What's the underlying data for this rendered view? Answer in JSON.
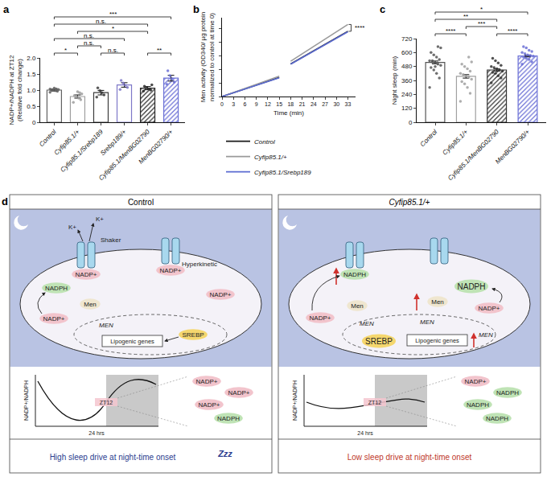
{
  "chart_data": [
    {
      "label": "a",
      "type": "bar",
      "categories": [
        "Control",
        "Cyfip85.1/+",
        "Cyfip85.1/Srebp189",
        "Srebp189/+",
        "Cyfip85.1/MenBG02790",
        "MenBG02790/+"
      ],
      "values": [
        1.0,
        0.8,
        0.92,
        1.16,
        1.06,
        1.37
      ],
      "errors": [
        0.03,
        0.05,
        0.07,
        0.07,
        0.05,
        0.09
      ],
      "points": [
        [
          0.93,
          0.96,
          0.98,
          1.0,
          1.01,
          1.02,
          1.04,
          1.06,
          0.99,
          1.03
        ],
        [
          0.62,
          0.7,
          0.75,
          0.8,
          0.83,
          0.88,
          0.92,
          0.95
        ],
        [
          0.78,
          0.85,
          0.92,
          0.98,
          1.07
        ],
        [
          1.02,
          1.08,
          1.15,
          1.22,
          1.3
        ],
        [
          0.97,
          1.0,
          1.04,
          1.08,
          1.12,
          1.16
        ],
        [
          1.18,
          1.25,
          1.35,
          1.45,
          1.6
        ]
      ],
      "colors": [
        "#616161",
        "#9e9e9e",
        "#3c3c3c",
        "#7e78c8",
        "#2a2a2a",
        "#6b70d6"
      ],
      "y_label": [
        "NADP+/NADPH at ZT12",
        "(Relative fold change)"
      ],
      "ylim": [
        0,
        2
      ],
      "yticks": [
        0,
        0.5,
        {
          "value": 1,
          "label": "1.0"
        },
        1.5,
        {
          "value": 2,
          "label": "2.0"
        }
      ],
      "brackets": [
        {
          "from": "Control",
          "to": "Cyfip85.1/+",
          "label": "*"
        },
        {
          "from": "Cyfip85.1/+",
          "to": "Cyfip85.1/Srebp189",
          "label": "n.s."
        },
        {
          "from": "Cyfip85.1/Srebp189",
          "to": "Srebp189/+",
          "label": "n.s."
        },
        {
          "from": "Cyfip85.1/MenBG02790",
          "to": "MenBG02790/+",
          "label": "**"
        },
        {
          "from": "Control",
          "to": "Srebp189/+",
          "label": "n.s."
        },
        {
          "from": "Cyfip85.1/+",
          "to": "Cyfip85.1/MenBG02790",
          "label": "*"
        },
        {
          "from": "Control",
          "to": "Cyfip85.1/MenBG02790",
          "label": "n.s."
        },
        {
          "from": "Control",
          "to": "MenBG02790/+",
          "label": "***"
        }
      ]
    },
    {
      "label": "b",
      "type": "line",
      "x": [
        0,
        1.5,
        3,
        4.5,
        6,
        7.5,
        9,
        10.5,
        12,
        13.5,
        15,
        16.5,
        18,
        19.5,
        21,
        22.5,
        24,
        25.5,
        27,
        28.5,
        30,
        31.5,
        33
      ],
      "series": [
        {
          "name": "Control",
          "color": "#1a1a1a",
          "values": [
            0,
            0.14,
            0.28,
            0.42,
            0.56,
            0.7,
            0.84,
            0.98,
            1.12,
            1.26,
            1.4,
            null,
            2.4,
            2.64,
            2.88,
            3.12,
            3.36,
            3.6,
            3.84,
            4.08,
            4.32,
            4.56,
            4.8
          ]
        },
        {
          "name": "Cyfip85.1/+",
          "color": "#9a9a9a",
          "values": [
            0,
            0.15,
            0.3,
            0.45,
            0.6,
            0.75,
            0.9,
            1.05,
            1.2,
            1.35,
            1.5,
            null,
            2.6,
            2.87,
            3.14,
            3.41,
            3.68,
            3.95,
            4.22,
            4.49,
            4.76,
            5.03,
            5.3
          ]
        },
        {
          "name": "Cyfip85.1/Srebp189",
          "color": "#5b6bd1",
          "values": [
            0,
            0.14,
            0.28,
            0.41,
            0.55,
            0.69,
            0.83,
            0.97,
            1.1,
            1.24,
            1.38,
            null,
            2.38,
            2.62,
            2.86,
            3.1,
            3.33,
            3.57,
            3.81,
            4.05,
            4.29,
            4.53,
            4.76
          ]
        }
      ],
      "x_label": "Time (min)",
      "y_label": [
        "Men activity (OD340/ µg protein",
        "normalized to control at time 0)"
      ],
      "xlim": [
        0,
        35
      ],
      "xticks": [
        0,
        3,
        6,
        9,
        12,
        15,
        18,
        21,
        24,
        27,
        30,
        33
      ],
      "ylim": [
        0,
        5.8
      ],
      "yticks": [
        0,
        1,
        2,
        3,
        4,
        5
      ],
      "tick_labels": "x",
      "legend": "bottom",
      "annotations": [
        {
          "text": "****",
          "x": 33,
          "from": 4.8,
          "to": 5.3
        }
      ]
    },
    {
      "label": "c",
      "type": "bar",
      "categories": [
        "Control",
        "Cyfip85.1/+",
        "Cyfip85.1/MenBG02790",
        "MenBG02790/+"
      ],
      "values": [
        515,
        395,
        450,
        570
      ],
      "errors": [
        12,
        15,
        9,
        7
      ],
      "points": [
        [
          300,
          380,
          420,
          450,
          470,
          490,
          500,
          510,
          520,
          530,
          540,
          560,
          580,
          600,
          640,
          650,
          480,
          530
        ],
        [
          180,
          250,
          300,
          330,
          350,
          370,
          390,
          400,
          410,
          420,
          440,
          460,
          480,
          500,
          520,
          560
        ],
        [
          340,
          380,
          400,
          420,
          430,
          440,
          450,
          460,
          470,
          480,
          490,
          510,
          530,
          550
        ],
        [
          500,
          520,
          540,
          550,
          560,
          570,
          575,
          580,
          590,
          600,
          610,
          620,
          640,
          650
        ]
      ],
      "colors": [
        "#555555",
        "#a0a0a0",
        "#333333",
        "#6b70d6"
      ],
      "y_label": [
        "Night sleep (min)"
      ],
      "ylim": [
        0,
        720
      ],
      "yticks": [
        0,
        120,
        240,
        360,
        480,
        600,
        720
      ],
      "brackets": [
        {
          "from": "Control",
          "to": "Cyfip85.1/+",
          "label": "****"
        },
        {
          "from": "Cyfip85.1/+",
          "to": "Cyfip85.1/MenBG02790",
          "label": "***"
        },
        {
          "from": "Cyfip85.1/MenBG02790",
          "to": "MenBG02790/+",
          "label": "****"
        },
        {
          "from": "Control",
          "to": "Cyfip85.1/MenBG02790",
          "label": "**"
        },
        {
          "from": "Control",
          "to": "MenBG02790/+",
          "label": "*"
        }
      ]
    }
  ],
  "diagram": {
    "label": "d",
    "panels": [
      {
        "title": "Control",
        "ion": "K+",
        "channels": [
          "Shaker",
          "Hyperkinetic"
        ],
        "oxidized": "NADP+",
        "reduced": "NADPH",
        "enzyme": "Men",
        "gene": "MEN",
        "factor": "SREBP",
        "targets": "Lipogenic genes",
        "graph": {
          "y_label": "NADP+/NADPH",
          "window": "ZT12",
          "x_label": "24 hrs",
          "pool": [
            "NADP+",
            "NADP+",
            "NADP+",
            "NADPH"
          ]
        },
        "footer": "High sleep drive at night-time onset",
        "sleep": "Zzz"
      },
      {
        "title": "Cyfip85.1/+",
        "oxidized": "NADP+",
        "reduced": "NADPH",
        "enzyme": "Men",
        "gene": "MEN",
        "factor": "SREBP",
        "targets": "Lipogenic genes",
        "graph": {
          "y_label": "NADP+/NADPH",
          "window": "ZT12",
          "x_label": "24 hrs",
          "pool": [
            "NADP+",
            "NADPH",
            "NADPH",
            "NADPH"
          ]
        },
        "footer": "Low sleep drive at night-time onset"
      }
    ]
  }
}
